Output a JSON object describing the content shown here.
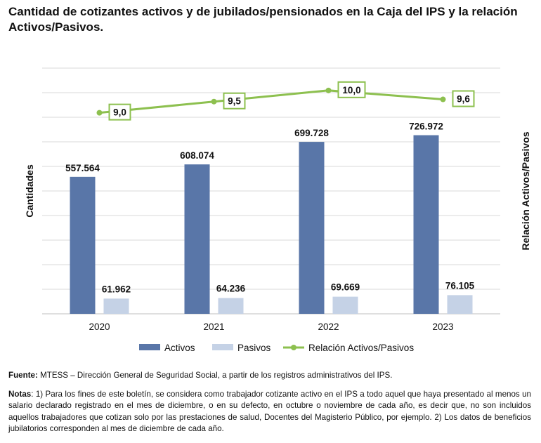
{
  "title": "Cantidad de cotizantes activos y de jubilados/pensionados en la Caja del IPS y la relación Activos/Pasivos.",
  "chart_data": {
    "type": "bar",
    "categories": [
      "2020",
      "2021",
      "2022",
      "2023"
    ],
    "series": [
      {
        "name": "Activos",
        "kind": "bar",
        "axis": "left",
        "color": "#5976a8",
        "values": [
          557564,
          608074,
          699728,
          726972
        ],
        "labels": [
          "557.564",
          "608.074",
          "699.728",
          "726.972"
        ]
      },
      {
        "name": "Pasivos",
        "kind": "bar",
        "axis": "left",
        "color": "#c5d2e6",
        "values": [
          61962,
          64236,
          69669,
          76105
        ],
        "labels": [
          "61.962",
          "64.236",
          "69.669",
          "76.105"
        ]
      },
      {
        "name": "Relación Activos/Pasivos",
        "kind": "line",
        "axis": "right",
        "color": "#8dc04f",
        "values": [
          9.0,
          9.5,
          10.0,
          9.6
        ],
        "labels": [
          "9,0",
          "9,5",
          "10,0",
          "9,6"
        ]
      }
    ],
    "ylabel": "Cantidades",
    "y2label": "Relación Activos/Pasivos",
    "ylim": [
      0,
      1000000
    ],
    "y2lim": [
      0,
      11
    ],
    "gridlines": 10,
    "legend": "bottom"
  },
  "notes": {
    "source_label": "Fuente:",
    "source_text": " MTESS – Dirección General de Seguridad Social, a partir de los registros administrativos del IPS.",
    "notes_label": "Notas",
    "notes_text": ": 1) Para los fines de este boletín, se considera como trabajador cotizante activo en el IPS a todo aquel que haya presentado al menos un salario declarado registrado en el mes de diciembre, o en su defecto, en octubre o noviembre de cada año, es decir que, no son incluidos aquellos trabajadores que cotizan solo por las prestaciones de salud, Docentes del Magisterio Público, por ejemplo. 2) Los datos de beneficios jubilatorios corresponden al mes de diciembre de cada año."
  }
}
